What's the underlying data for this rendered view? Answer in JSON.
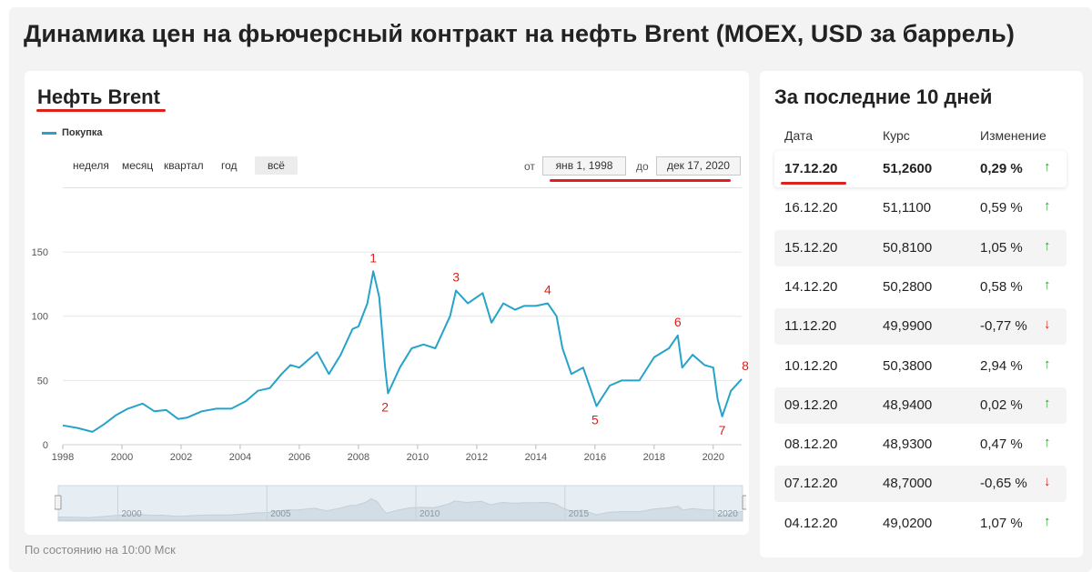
{
  "page": {
    "title": "Динамика цен на фьючерсный контракт на нефть Brent (MOEX, USD за баррель)",
    "footnote": "По состоянию на 10:00 Мск"
  },
  "chart_panel": {
    "title": "Нефть Brent",
    "legend": "Покупка",
    "ranges": [
      "неделя",
      "месяц",
      "квартал",
      "год",
      "всё"
    ],
    "active_range": "всё",
    "from_label": "от",
    "from_value": "янв 1, 1998",
    "to_label": "до",
    "to_value": "дек 17, 2020",
    "navigator_labels": [
      "2000",
      "2005",
      "2010",
      "2015",
      "2020"
    ]
  },
  "chart_data": {
    "type": "line",
    "series": [
      {
        "name": "Покупка",
        "color": "#25a3c9",
        "x": [
          1998.0,
          1998.5,
          1999.0,
          1999.4,
          1999.8,
          2000.2,
          2000.7,
          2001.1,
          2001.5,
          2001.9,
          2002.2,
          2002.7,
          2003.2,
          2003.7,
          2004.2,
          2004.6,
          2005.0,
          2005.4,
          2005.7,
          2006.0,
          2006.6,
          2007.0,
          2007.4,
          2007.8,
          2008.0,
          2008.3,
          2008.5,
          2008.7,
          2008.9,
          2009.0,
          2009.4,
          2009.8,
          2010.2,
          2010.6,
          2010.9,
          2011.1,
          2011.3,
          2011.7,
          2012.2,
          2012.5,
          2012.9,
          2013.3,
          2013.6,
          2014.0,
          2014.4,
          2014.7,
          2014.9,
          2015.2,
          2015.6,
          2015.9,
          2016.05,
          2016.5,
          2016.9,
          2017.5,
          2018.0,
          2018.5,
          2018.8,
          2018.95,
          2019.3,
          2019.7,
          2020.0,
          2020.15,
          2020.3,
          2020.6,
          2020.96
        ],
        "y": [
          15,
          13,
          10,
          16,
          23,
          28,
          32,
          26,
          27,
          20,
          21,
          26,
          28,
          28,
          34,
          42,
          44,
          55,
          62,
          60,
          72,
          55,
          70,
          90,
          92,
          110,
          135,
          115,
          60,
          40,
          60,
          75,
          78,
          75,
          90,
          100,
          120,
          110,
          118,
          95,
          110,
          105,
          108,
          108,
          110,
          100,
          75,
          55,
          60,
          40,
          30,
          46,
          50,
          50,
          68,
          75,
          85,
          60,
          70,
          62,
          60,
          35,
          22,
          42,
          51
        ]
      }
    ],
    "xlim": [
      1998,
      2020.96
    ],
    "ylim": [
      0,
      155
    ],
    "x_ticks": [
      1998,
      2000,
      2002,
      2004,
      2006,
      2008,
      2010,
      2012,
      2014,
      2016,
      2018,
      2020
    ],
    "y_ticks": [
      0,
      50,
      100,
      150
    ],
    "annotations": [
      {
        "label": "1",
        "x": 2008.5,
        "y": 135
      },
      {
        "label": "2",
        "x": 2008.9,
        "y": 40
      },
      {
        "label": "3",
        "x": 2011.3,
        "y": 120
      },
      {
        "label": "4",
        "x": 2014.4,
        "y": 110
      },
      {
        "label": "5",
        "x": 2016.0,
        "y": 30
      },
      {
        "label": "6",
        "x": 2018.8,
        "y": 85
      },
      {
        "label": "7",
        "x": 2020.3,
        "y": 22
      },
      {
        "label": "8",
        "x": 2020.96,
        "y": 51
      }
    ],
    "annotation_color": "#e0201b",
    "legend_position": "top-left",
    "grid": "horizontal"
  },
  "side": {
    "title": "За последние 10 дней",
    "headers": {
      "date": "Дата",
      "rate": "Курс",
      "change": "Изменение"
    },
    "rows": [
      {
        "date": "17.12.20",
        "rate": "51,2600",
        "change": "0,29 %",
        "arrow": "↑"
      },
      {
        "date": "16.12.20",
        "rate": "51,1100",
        "change": "0,59 %",
        "arrow": "↑"
      },
      {
        "date": "15.12.20",
        "rate": "50,8100",
        "change": "1,05 %",
        "arrow": "↑"
      },
      {
        "date": "14.12.20",
        "rate": "50,2800",
        "change": "0,58 %",
        "arrow": "↑"
      },
      {
        "date": "11.12.20",
        "rate": "49,9900",
        "change": "-0,77 %",
        "arrow": "↓"
      },
      {
        "date": "10.12.20",
        "rate": "50,3800",
        "change": "2,94 %",
        "arrow": "↑"
      },
      {
        "date": "09.12.20",
        "rate": "48,9400",
        "change": "0,02 %",
        "arrow": "↑"
      },
      {
        "date": "08.12.20",
        "rate": "48,9300",
        "change": "0,47 %",
        "arrow": "↑"
      },
      {
        "date": "07.12.20",
        "rate": "48,7000",
        "change": "-0,65 %",
        "arrow": "↓"
      },
      {
        "date": "04.12.20",
        "rate": "49,0200",
        "change": "1,07 %",
        "arrow": "↑"
      }
    ],
    "up_color": "#2ca02c",
    "down_color": "#e0201b"
  }
}
